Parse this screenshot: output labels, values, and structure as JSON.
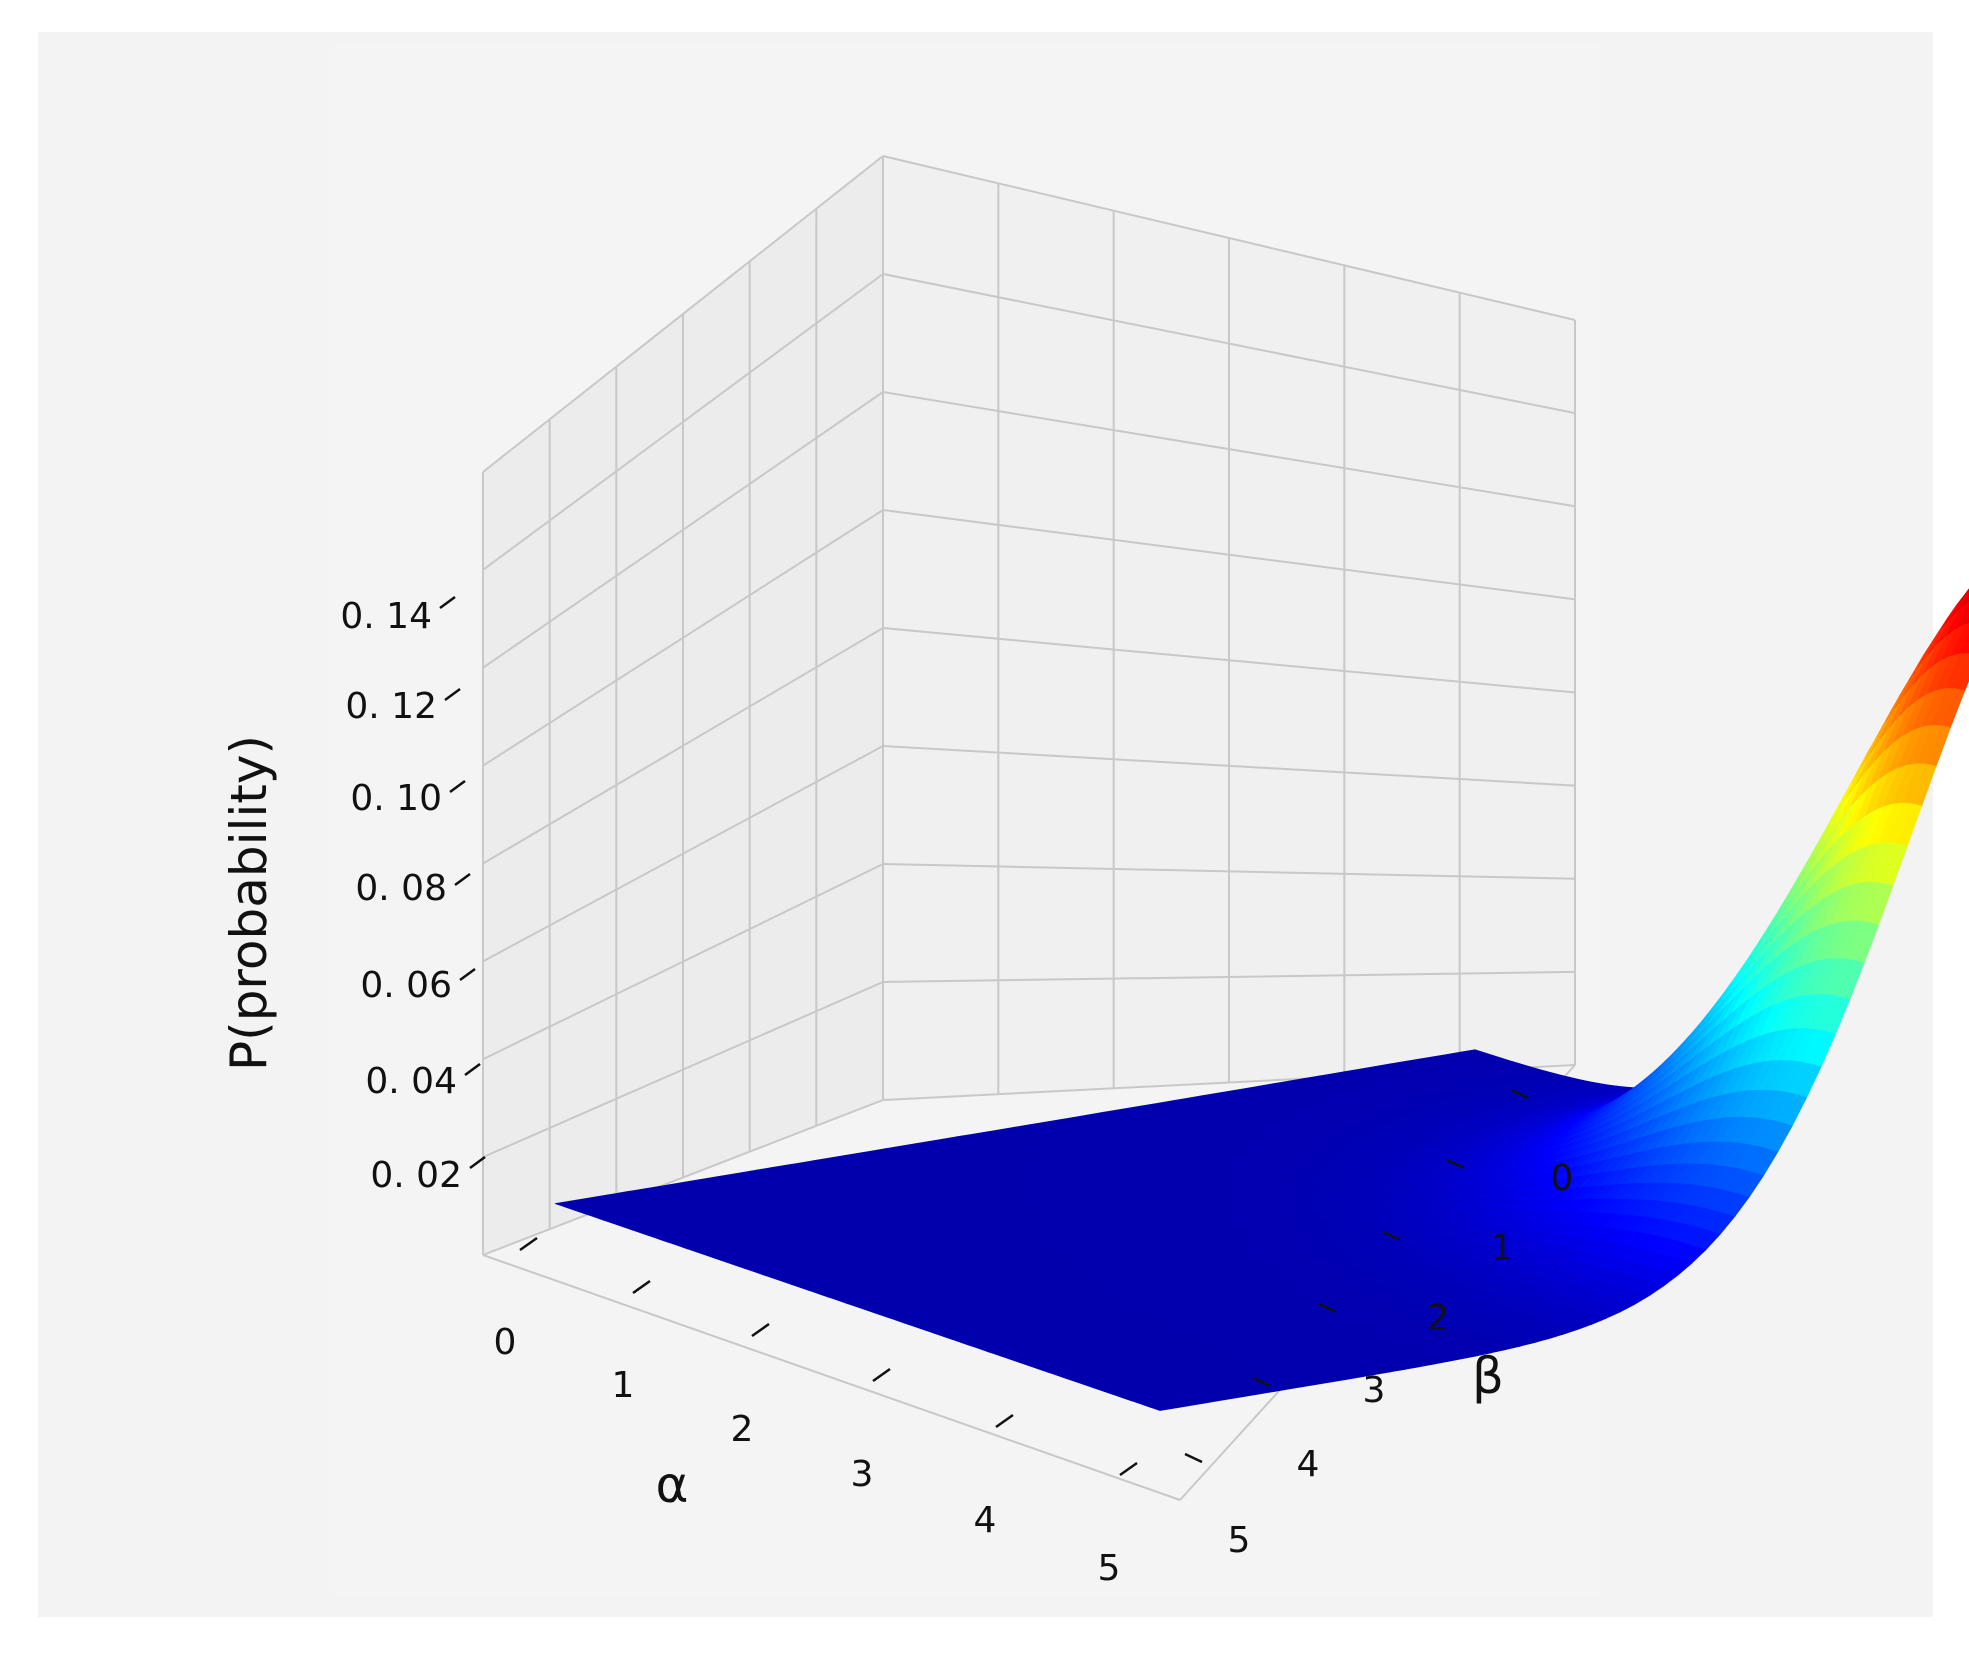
{
  "chart_data": {
    "type": "surface",
    "title": "",
    "xlabel": "α",
    "ylabel": "β",
    "zlabel": "P(probability)",
    "x_ticks": [
      "0",
      "1",
      "2",
      "3",
      "4",
      "5"
    ],
    "y_ticks": [
      "0",
      "1",
      "2",
      "3",
      "4",
      "5"
    ],
    "z_ticks": [
      "0. 02",
      "0. 04",
      "0. 06",
      "0. 08",
      "0. 10",
      "0. 12",
      "0. 14"
    ],
    "xlim": [
      0,
      5
    ],
    "ylim": [
      0,
      5
    ],
    "zlim": [
      0,
      0.16
    ],
    "surface": {
      "peak": {
        "alpha": 5,
        "beta": 0,
        "p": 0.158
      },
      "floor": 0.004,
      "grid_resolution": 64
    },
    "colormap": "jet",
    "grid": true
  },
  "colors": {
    "outer_background": "#f3f3f3",
    "pane_background": "#f3f3f3",
    "pane_left": "#ececec",
    "pane_right": "#f0f0f0",
    "grid_line": "#c8c8c8"
  }
}
